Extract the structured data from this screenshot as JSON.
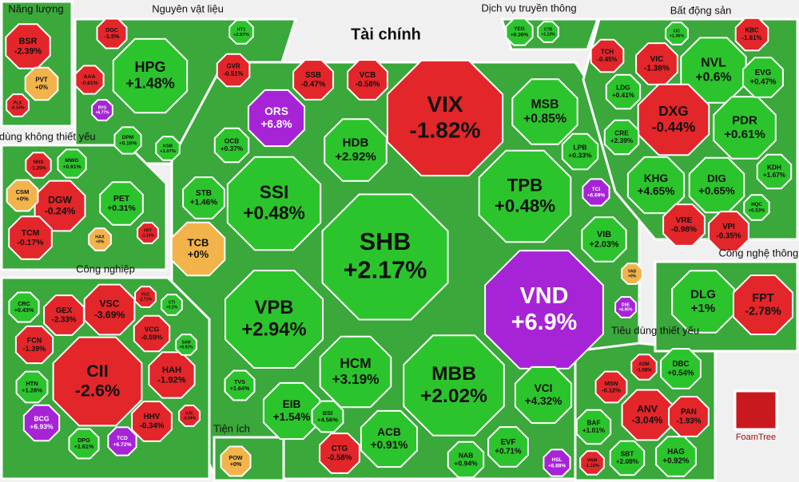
{
  "chart_data": {
    "type": "treemap",
    "logo": "FoamTree",
    "groups": [
      {
        "name": "Năng lượng",
        "tiles": [
          {
            "name": "BSR",
            "value": -2.39,
            "value_label": "-2.39%",
            "color": "#e3262a"
          },
          {
            "name": "PVT",
            "value": 0,
            "value_label": "+0%",
            "color": "#f2b44a"
          },
          {
            "name": "PLX",
            "value": -0.14,
            "value_label": "-0.14%",
            "color": "#e3262a"
          }
        ]
      },
      {
        "name": "Nguyên vật liệu",
        "tiles": [
          {
            "name": "HPG",
            "value": 1.48,
            "value_label": "+1.48%",
            "color": "#2cc42c"
          },
          {
            "name": "DGC",
            "value": -1.5,
            "value_label": "-1.5%",
            "color": "#e3262a"
          },
          {
            "name": "AAA",
            "value": -0.61,
            "value_label": "-0.61%",
            "color": "#e3262a"
          },
          {
            "name": "GVR",
            "value": -0.51,
            "value_label": "-0.51%",
            "color": "#e3262a"
          },
          {
            "name": "HT1",
            "value": 2.87,
            "value_label": "+2.87%",
            "color": "#2cc42c"
          },
          {
            "name": "DPM",
            "value": 0.19,
            "value_label": "+0.19%",
            "color": "#2cc42c"
          },
          {
            "name": "KSB",
            "value": 1.07,
            "value_label": "+1.07%",
            "color": "#2cc42c"
          },
          {
            "name": "RYG",
            "value": 6.77,
            "value_label": "+6.77%",
            "color": "#a624d6"
          }
        ]
      },
      {
        "name": "Tài chính",
        "tiles": [
          {
            "name": "VIX",
            "value": -1.82,
            "value_label": "-1.82%",
            "color": "#e3262a"
          },
          {
            "name": "SHB",
            "value": 2.17,
            "value_label": "+2.17%",
            "color": "#2cc42c"
          },
          {
            "name": "VND",
            "value": 6.9,
            "value_label": "+6.9%",
            "color": "#a624d6"
          },
          {
            "name": "TPB",
            "value": 0.48,
            "value_label": "+0.48%",
            "color": "#2cc42c"
          },
          {
            "name": "SSI",
            "value": 0.48,
            "value_label": "+0.48%",
            "color": "#2cc42c"
          },
          {
            "name": "VPB",
            "value": 2.94,
            "value_label": "+2.94%",
            "color": "#2cc42c"
          },
          {
            "name": "MBB",
            "value": 2.02,
            "value_label": "+2.02%",
            "color": "#2cc42c"
          },
          {
            "name": "HCM",
            "value": 3.19,
            "value_label": "+3.19%",
            "color": "#2cc42c"
          },
          {
            "name": "HDB",
            "value": 2.92,
            "value_label": "+2.92%",
            "color": "#2cc42c"
          },
          {
            "name": "MSB",
            "value": 0.85,
            "value_label": "+0.85%",
            "color": "#2cc42c"
          },
          {
            "name": "ORS",
            "value": 6.8,
            "value_label": "+6.8%",
            "color": "#a624d6"
          },
          {
            "name": "TCB",
            "value": 0,
            "value_label": "+0%",
            "color": "#f2b44a"
          },
          {
            "name": "SSB",
            "value": -0.47,
            "value_label": "-0.47%",
            "color": "#e3262a"
          },
          {
            "name": "VCB",
            "value": -0.58,
            "value_label": "-0.58%",
            "color": "#e3262a"
          },
          {
            "name": "EIB",
            "value": 1.54,
            "value_label": "+1.54%",
            "color": "#2cc42c"
          },
          {
            "name": "ACB",
            "value": 0.91,
            "value_label": "+0.91%",
            "color": "#2cc42c"
          },
          {
            "name": "CTG",
            "value": -0.58,
            "value_label": "-0.58%",
            "color": "#e3262a"
          },
          {
            "name": "VCI",
            "value": 4.32,
            "value_label": "+4.32%",
            "color": "#2cc42c"
          },
          {
            "name": "EVF",
            "value": 0.71,
            "value_label": "+0.71%",
            "color": "#2cc42c"
          },
          {
            "name": "NAB",
            "value": 0.94,
            "value_label": "+0.94%",
            "color": "#2cc42c"
          },
          {
            "name": "VIB",
            "value": 2.03,
            "value_label": "+2.03%",
            "color": "#2cc42c"
          },
          {
            "name": "LPB",
            "value": 0.33,
            "value_label": "+0.33%",
            "color": "#2cc42c"
          },
          {
            "name": "TCI",
            "value": 6.69,
            "value_label": "+6.69%",
            "color": "#a624d6"
          },
          {
            "name": "STB",
            "value": 1.46,
            "value_label": "+1.46%",
            "color": "#2cc42c"
          },
          {
            "name": "OCB",
            "value": 0.37,
            "value_label": "+0.37%",
            "color": "#2cc42c"
          },
          {
            "name": "BSI",
            "value": 4.56,
            "value_label": "+4.56%",
            "color": "#2cc42c"
          },
          {
            "name": "HSL",
            "value": 6.88,
            "value_label": "+6.88%",
            "color": "#a624d6"
          },
          {
            "name": "VAB",
            "value": 0,
            "value_label": "+0%",
            "color": "#f2b44a"
          },
          {
            "name": "DSE",
            "value": 6.95,
            "value_label": "+6.95%",
            "color": "#a624d6"
          },
          {
            "name": "TVS",
            "value": 1.64,
            "value_label": "+1.64%",
            "color": "#2cc42c"
          }
        ]
      },
      {
        "name": "Dịch vụ truyền thông",
        "tiles": [
          {
            "name": "YEG",
            "value": 0.36,
            "value_label": "+0.36%",
            "color": "#2cc42c"
          },
          {
            "name": "CTR",
            "value": 1.13,
            "value_label": "+1.13%",
            "color": "#2cc42c"
          }
        ]
      },
      {
        "name": "Bất động sản",
        "tiles": [
          {
            "name": "VIC",
            "value": -1.38,
            "value_label": "-1.38%",
            "color": "#e3262a"
          },
          {
            "name": "NVL",
            "value": 0.6,
            "value_label": "+0.6%",
            "color": "#2cc42c"
          },
          {
            "name": "DXG",
            "value": -0.44,
            "value_label": "-0.44%",
            "color": "#e3262a"
          },
          {
            "name": "PDR",
            "value": 0.61,
            "value_label": "+0.61%",
            "color": "#2cc42c"
          },
          {
            "name": "KHG",
            "value": 4.65,
            "value_label": "+4.65%",
            "color": "#2cc42c"
          },
          {
            "name": "DIG",
            "value": 0.65,
            "value_label": "+0.65%",
            "color": "#2cc42c"
          },
          {
            "name": "VRE",
            "value": -0.98,
            "value_label": "-0.98%",
            "color": "#e3262a"
          },
          {
            "name": "VPI",
            "value": -0.35,
            "value_label": "-0.35%",
            "color": "#e3262a"
          },
          {
            "name": "KBC",
            "value": -1.61,
            "value_label": "-1.61%",
            "color": "#e3262a"
          },
          {
            "name": "EVG",
            "value": 0.47,
            "value_label": "+0.47%",
            "color": "#2cc42c"
          },
          {
            "name": "TCH",
            "value": -0.45,
            "value_label": "-0.45%",
            "color": "#e3262a"
          },
          {
            "name": "LDG",
            "value": 0.41,
            "value_label": "+0.41%",
            "color": "#2cc42c"
          },
          {
            "name": "CRE",
            "value": 2.39,
            "value_label": "+2.39%",
            "color": "#2cc42c"
          },
          {
            "name": "KDH",
            "value": 1.67,
            "value_label": "+1.67%",
            "color": "#2cc42c"
          },
          {
            "name": "HQC",
            "value": 0.53,
            "value_label": "+0.53%",
            "color": "#2cc42c"
          },
          {
            "name": "IJC",
            "value": 1.36,
            "value_label": "+1.36%",
            "color": "#2cc42c"
          }
        ]
      },
      {
        "name": "Tiêu dùng không thiết yếu",
        "tiles": [
          {
            "name": "DGW",
            "value": -0.24,
            "value_label": "-0.24%",
            "color": "#e3262a"
          },
          {
            "name": "CSM",
            "value": 0,
            "value_label": "+0%",
            "color": "#f2b44a"
          },
          {
            "name": "TCM",
            "value": -0.17,
            "value_label": "-0.17%",
            "color": "#e3262a"
          },
          {
            "name": "PET",
            "value": 0.31,
            "value_label": "+0.31%",
            "color": "#2cc42c"
          },
          {
            "name": "MWG",
            "value": 0.91,
            "value_label": "+0.91%",
            "color": "#2cc42c"
          },
          {
            "name": "HHS",
            "value": -1.25,
            "value_label": "-1.25%",
            "color": "#e3262a"
          },
          {
            "name": "HAX",
            "value": 0,
            "value_label": "+0%",
            "color": "#f2b44a"
          },
          {
            "name": "FRT",
            "value": -1.14,
            "value_label": "-1.14%",
            "color": "#e3262a"
          }
        ]
      },
      {
        "name": "Công nghiệp",
        "tiles": [
          {
            "name": "CII",
            "value": -2.6,
            "value_label": "-2.6%",
            "color": "#e3262a"
          },
          {
            "name": "VSC",
            "value": -3.69,
            "value_label": "-3.69%",
            "color": "#e3262a"
          },
          {
            "name": "GEX",
            "value": -2.33,
            "value_label": "-2.33%",
            "color": "#e3262a"
          },
          {
            "name": "CRC",
            "value": 0.43,
            "value_label": "+0.43%",
            "color": "#2cc42c"
          },
          {
            "name": "FCN",
            "value": -1.39,
            "value_label": "-1.39%",
            "color": "#e3262a"
          },
          {
            "name": "VCG",
            "value": -0.59,
            "value_label": "-0.59%",
            "color": "#e3262a"
          },
          {
            "name": "HAH",
            "value": -1.92,
            "value_label": "-1.92%",
            "color": "#e3262a"
          },
          {
            "name": "HHV",
            "value": -0.34,
            "value_label": "-0.34%",
            "color": "#e3262a"
          },
          {
            "name": "HTN",
            "value": 1.28,
            "value_label": "+1.28%",
            "color": "#2cc42c"
          },
          {
            "name": "BCG",
            "value": 6.93,
            "value_label": "+6.93%",
            "color": "#a624d6"
          },
          {
            "name": "DPG",
            "value": 1.61,
            "value_label": "+1.61%",
            "color": "#2cc42c"
          },
          {
            "name": "TCD",
            "value": 6.72,
            "value_label": "+6.72%",
            "color": "#a624d6"
          },
          {
            "name": "VJC",
            "value": -0.34,
            "value_label": "-0.34%",
            "color": "#e3262a"
          },
          {
            "name": "CTI",
            "value": 0.2,
            "value_label": "+0.2%",
            "color": "#2cc42c"
          },
          {
            "name": "SAM",
            "value": 0.92,
            "value_label": "+0.92%",
            "color": "#2cc42c"
          },
          {
            "name": "VGC",
            "value": -2.71,
            "value_label": "-2.71%",
            "color": "#e3262a"
          }
        ]
      },
      {
        "name": "Tiện ích",
        "tiles": [
          {
            "name": "POW",
            "value": 0,
            "value_label": "+0%",
            "color": "#f2b44a"
          }
        ]
      },
      {
        "name": "Tiêu dùng thiết yếu",
        "tiles": [
          {
            "name": "DBC",
            "value": 0.54,
            "value_label": "+0.54%",
            "color": "#2cc42c"
          },
          {
            "name": "ANV",
            "value": -3.04,
            "value_label": "-3.04%",
            "color": "#e3262a"
          },
          {
            "name": "PAN",
            "value": -1.93,
            "value_label": "-1.93%",
            "color": "#e3262a"
          },
          {
            "name": "HAG",
            "value": 0.92,
            "value_label": "+0.92%",
            "color": "#2cc42c"
          },
          {
            "name": "SBT",
            "value": 2.08,
            "value_label": "+2.08%",
            "color": "#2cc42c"
          },
          {
            "name": "BAF",
            "value": 1.01,
            "value_label": "+1.01%",
            "color": "#2cc42c"
          },
          {
            "name": "MSN",
            "value": -0.12,
            "value_label": "-0.12%",
            "color": "#e3262a"
          },
          {
            "name": "VNM",
            "value": -1.15,
            "value_label": "-1.15%",
            "color": "#e3262a"
          },
          {
            "name": "ASM",
            "value": -1.08,
            "value_label": "-1.08%",
            "color": "#e3262a"
          }
        ]
      },
      {
        "name": "Công nghệ thông tin",
        "tiles": [
          {
            "name": "DLG",
            "value": 1,
            "value_label": "+1%",
            "color": "#2cc42c"
          },
          {
            "name": "FPT",
            "value": -2.78,
            "value_label": "-2.78%",
            "color": "#e3262a"
          }
        ]
      }
    ]
  }
}
